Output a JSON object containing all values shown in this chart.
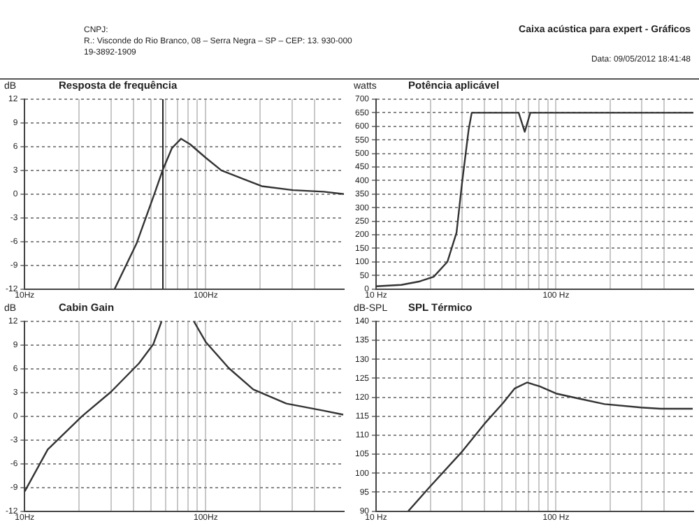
{
  "chart_data": [
    {
      "type": "other",
      "title": "Caixa acústica para expert - Gráficos",
      "annotations": [
        "CNPJ:",
        "R.: Visconde do Rio Branco, 08 – Serra Negra – SP – CEP: 13. 930-000",
        "19-3892-1909",
        "Data: 09/05/2012 18:41:48"
      ]
    },
    {
      "type": "line",
      "title": "Resposta de frequência",
      "ylabel": "dB",
      "log": "x",
      "grid": true,
      "legend": false,
      "marker": "none",
      "xlim": [
        10,
        580
      ],
      "xticks": [
        {
          "value": 10,
          "label": "10Hz"
        },
        {
          "value": 20,
          "label": null
        },
        {
          "value": 30,
          "label": null
        },
        {
          "value": 40,
          "label": null
        },
        {
          "value": 50,
          "label": null
        },
        {
          "value": 60,
          "label": null
        },
        {
          "value": 70,
          "label": null
        },
        {
          "value": 80,
          "label": null
        },
        {
          "value": 90,
          "label": null
        },
        {
          "value": 100,
          "label": "100Hz"
        },
        {
          "value": 200,
          "label": null
        },
        {
          "value": 300,
          "label": null
        },
        {
          "value": 400,
          "label": null
        }
      ],
      "ylim": [
        -12,
        12
      ],
      "yticks": [
        -12,
        -9,
        -6,
        -3,
        0,
        3,
        6,
        9,
        12
      ],
      "ref_lines": [
        {
          "axis": "x",
          "value": 58,
          "color": "#222222"
        }
      ],
      "series": [
        {
          "color": "#333333",
          "x": [
            31.4,
            41.4,
            52,
            58,
            65,
            73,
            82,
            100,
            122,
            162,
            204,
            303,
            449,
            580
          ],
          "values": [
            -12,
            -6.3,
            0,
            3.1,
            5.8,
            7,
            6.3,
            4.6,
            3,
            1.9,
            1,
            0.5,
            0.3,
            0
          ]
        }
      ]
    },
    {
      "type": "line",
      "title": "Potência aplicável",
      "ylabel": "watts",
      "log": "x",
      "grid": true,
      "legend": false,
      "marker": "none",
      "xlim": [
        10,
        580
      ],
      "xticks": [
        {
          "value": 10,
          "label": "10 Hz"
        },
        {
          "value": 20,
          "label": null
        },
        {
          "value": 30,
          "label": null
        },
        {
          "value": 40,
          "label": null
        },
        {
          "value": 50,
          "label": null
        },
        {
          "value": 60,
          "label": null
        },
        {
          "value": 70,
          "label": null
        },
        {
          "value": 80,
          "label": null
        },
        {
          "value": 90,
          "label": null
        },
        {
          "value": 100,
          "label": "100 Hz"
        },
        {
          "value": 200,
          "label": null
        },
        {
          "value": 300,
          "label": null
        },
        {
          "value": 400,
          "label": null
        }
      ],
      "ylim": [
        0,
        700
      ],
      "yticks": [
        0,
        50,
        100,
        150,
        200,
        250,
        300,
        350,
        400,
        450,
        500,
        550,
        600,
        650,
        700
      ],
      "series": [
        {
          "color": "#333333",
          "x": [
            10,
            13.8,
            17.5,
            20.9,
            24.9,
            28,
            30,
            32.7,
            34,
            62,
            67,
            72,
            580
          ],
          "values": [
            10,
            15,
            28,
            45,
            100,
            208,
            388,
            588,
            650,
            650,
            580,
            650,
            650
          ]
        }
      ]
    },
    {
      "type": "line",
      "title": "Cabin Gain",
      "ylabel": "dB",
      "log": "x",
      "grid": true,
      "legend": false,
      "marker": "none",
      "xlim": [
        10,
        580
      ],
      "xticks": [
        {
          "value": 10,
          "label": "10Hz"
        },
        {
          "value": 20,
          "label": null
        },
        {
          "value": 30,
          "label": null
        },
        {
          "value": 40,
          "label": null
        },
        {
          "value": 50,
          "label": null
        },
        {
          "value": 60,
          "label": null
        },
        {
          "value": 70,
          "label": null
        },
        {
          "value": 80,
          "label": null
        },
        {
          "value": 90,
          "label": null
        },
        {
          "value": 100,
          "label": "100Hz"
        },
        {
          "value": 200,
          "label": null
        },
        {
          "value": 300,
          "label": null
        },
        {
          "value": 400,
          "label": null
        }
      ],
      "ylim": [
        -12,
        12
      ],
      "yticks": [
        -12,
        -9,
        -6,
        -3,
        0,
        3,
        6,
        9,
        12
      ],
      "series": [
        {
          "color": "#333333",
          "x": [
            10,
            13.4,
            20.7,
            30,
            42.8,
            51.3,
            57,
            70,
            86,
            100,
            134,
            183,
            279,
            450,
            575
          ],
          "values": [
            -9.5,
            -4.2,
            0,
            3.1,
            6.7,
            9.1,
            12,
            null,
            12,
            9.4,
            6.1,
            3.4,
            1.6,
            0.7,
            0.2
          ]
        }
      ]
    },
    {
      "type": "line",
      "title": "SPL Térmico",
      "ylabel": "dB-SPL",
      "log": "x",
      "grid": true,
      "legend": false,
      "marker": "none",
      "xlim": [
        10,
        580
      ],
      "xticks": [
        {
          "value": 10,
          "label": "10 Hz"
        },
        {
          "value": 20,
          "label": null
        },
        {
          "value": 30,
          "label": null
        },
        {
          "value": 40,
          "label": null
        },
        {
          "value": 50,
          "label": null
        },
        {
          "value": 60,
          "label": null
        },
        {
          "value": 70,
          "label": null
        },
        {
          "value": 80,
          "label": null
        },
        {
          "value": 90,
          "label": null
        },
        {
          "value": 100,
          "label": "100 Hz"
        },
        {
          "value": 200,
          "label": null
        },
        {
          "value": 300,
          "label": null
        },
        {
          "value": 400,
          "label": null
        }
      ],
      "ylim": [
        90,
        140
      ],
      "yticks": [
        90,
        95,
        100,
        105,
        110,
        115,
        120,
        125,
        130,
        135,
        140
      ],
      "series": [
        {
          "color": "#333333",
          "x": [
            15.1,
            19.7,
            29.8,
            40,
            50.8,
            58.8,
            69,
            81,
            100,
            130,
            186,
            297,
            380,
            575
          ],
          "values": [
            90,
            96.2,
            105.5,
            113,
            118.5,
            122.3,
            123.9,
            122.9,
            121,
            119.8,
            118.2,
            117.3,
            117,
            117
          ]
        }
      ]
    }
  ]
}
